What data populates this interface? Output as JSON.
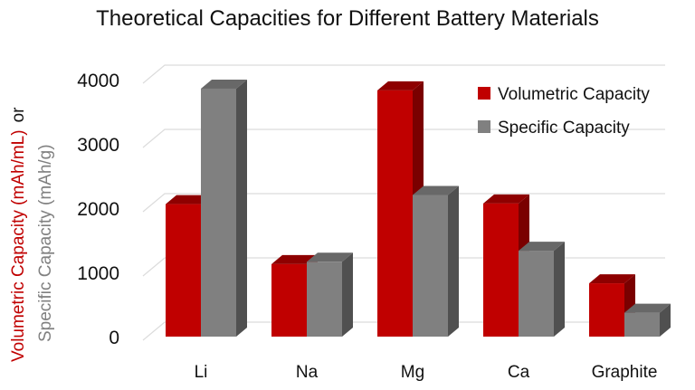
{
  "chart_data": {
    "type": "bar",
    "title": "Theoretical Capacities for Different Battery Materials",
    "ylabel_parts": [
      "Volumetric Capacity (mAh/mL)",
      "or",
      "Specific Capacity (mAh/g)"
    ],
    "categories": [
      "Li",
      "Na",
      "Mg",
      "Ca",
      "Graphite"
    ],
    "series": [
      {
        "name": "Volumetric Capacity",
        "color": "#c00000",
        "values": [
          2062,
          1128,
          3833,
          2073,
          830
        ]
      },
      {
        "name": "Specific Capacity",
        "color": "#808080",
        "values": [
          3860,
          1165,
          2205,
          1337,
          372
        ]
      }
    ],
    "ylim": [
      0,
      4000
    ],
    "yticks": [
      0,
      1000,
      2000,
      3000,
      4000
    ],
    "grid": true,
    "style": "3d-clustered-column",
    "legend_position": "top-right"
  }
}
